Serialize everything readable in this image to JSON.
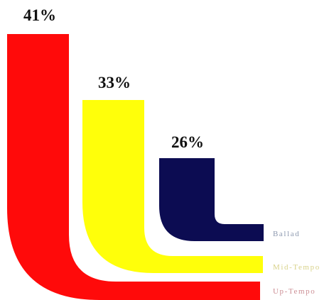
{
  "chart_data": {
    "type": "bar",
    "series": [
      {
        "name": "Up-Tempo",
        "value": 41,
        "label": "41%",
        "color": "#ff0a0a"
      },
      {
        "name": "Mid-Tempo",
        "value": 33,
        "label": "33%",
        "color": "#ffff0a"
      },
      {
        "name": "Ballad",
        "value": 26,
        "label": "26%",
        "color": "#0c0c52"
      }
    ],
    "legend_position": "right",
    "grid": false
  },
  "series_text_colors": {
    "Up-Tempo": "#cc8f95",
    "Mid-Tempo": "#d8d28a",
    "Ballad": "#8e9ab0"
  }
}
